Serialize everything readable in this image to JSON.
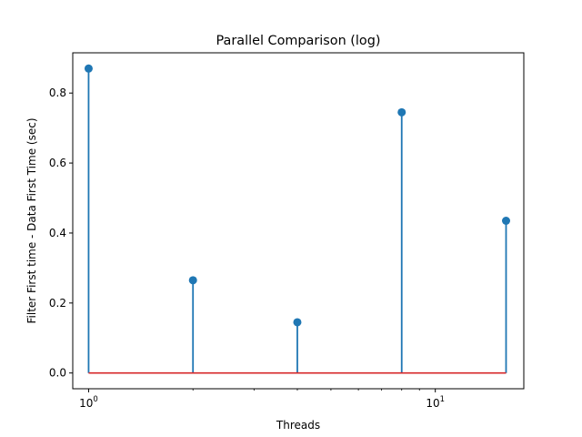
{
  "chart_data": {
    "type": "stem",
    "title": "Parallel Comparison (log)",
    "xlabel": "Threads",
    "ylabel": "Filter First time - Data First Time (sec)",
    "xscale": "log",
    "x": [
      1,
      2,
      4,
      8,
      16
    ],
    "y": [
      0.87,
      0.265,
      0.145,
      0.745,
      0.435
    ],
    "baseline": 0,
    "xlim": [
      0.9,
      18
    ],
    "ylim": [
      -0.045,
      0.915
    ],
    "x_tick_labels": [
      {
        "value": 1,
        "base": "10",
        "exp": "0"
      },
      {
        "value": 10,
        "base": "10",
        "exp": "1"
      }
    ],
    "y_ticks": [
      0.0,
      0.2,
      0.4,
      0.6,
      0.8
    ],
    "y_tick_labels": [
      "0.0",
      "0.2",
      "0.4",
      "0.6",
      "0.8"
    ],
    "grid": false,
    "colors": {
      "stem": "#1f77b4",
      "marker": "#1f77b4",
      "baseline": "#d62728",
      "axes": "#000000"
    }
  }
}
